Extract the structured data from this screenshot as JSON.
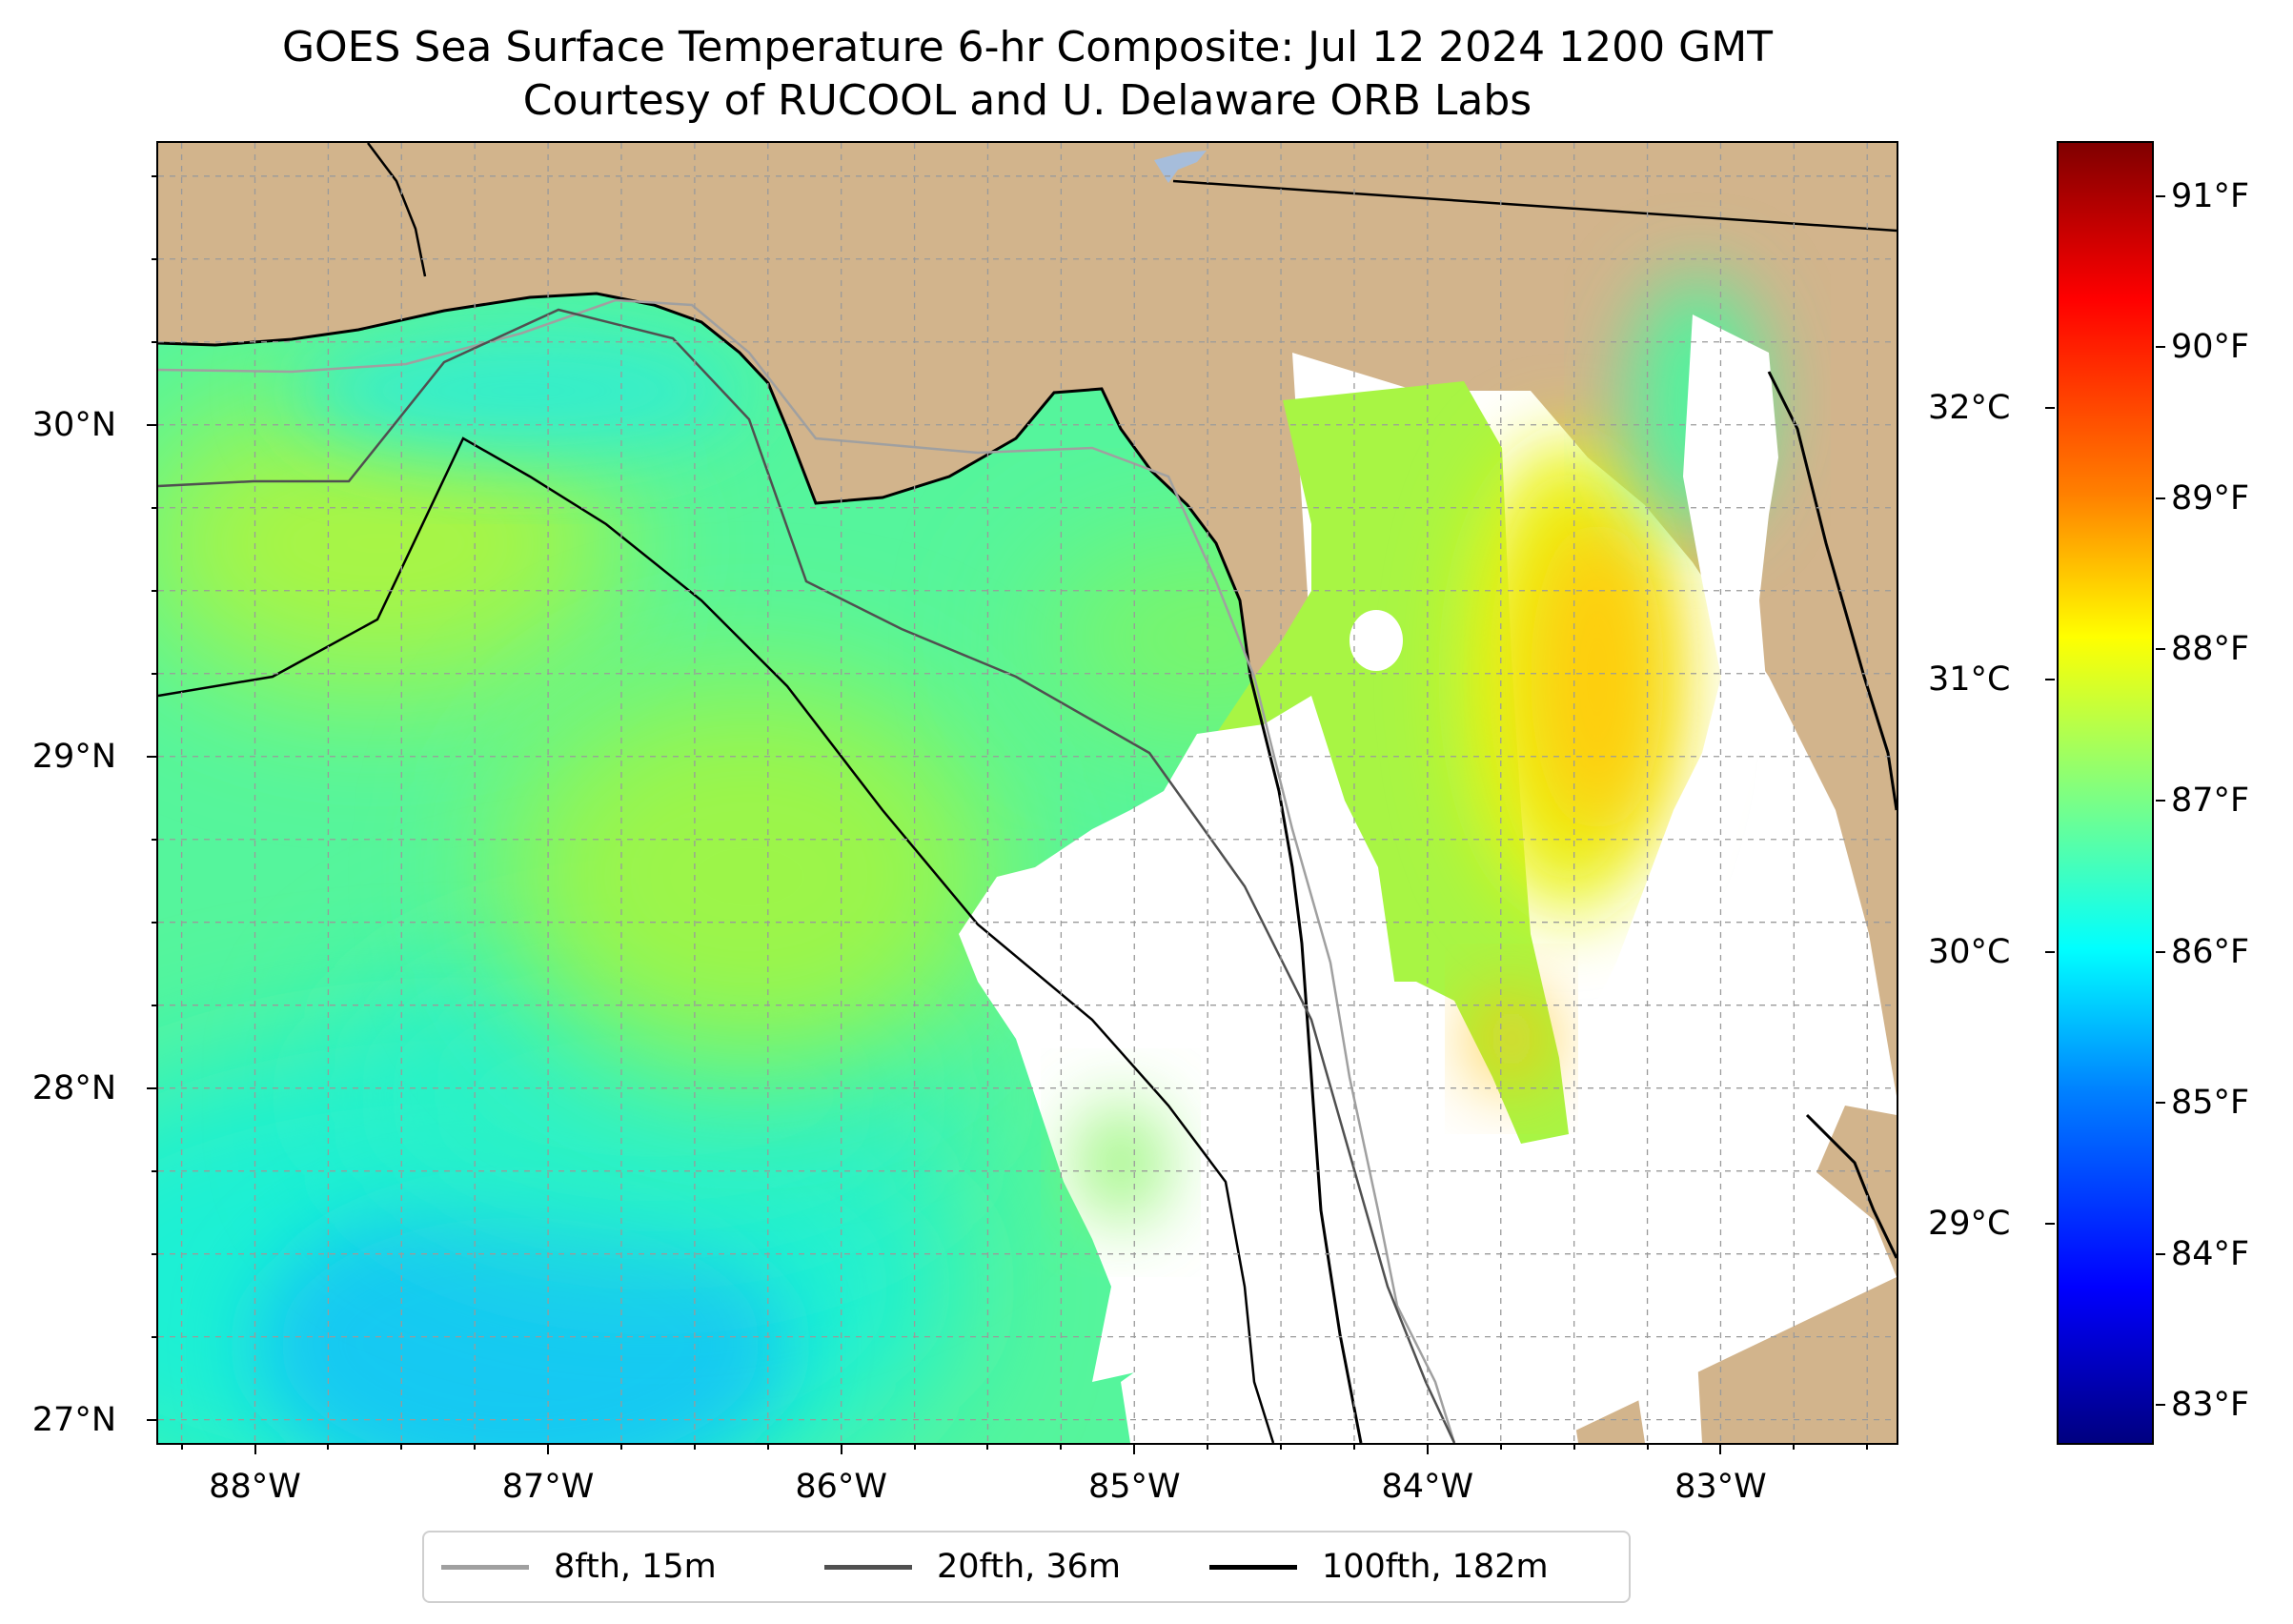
{
  "title": {
    "line1": "GOES Sea Surface Temperature 6-hr Composite: Jul 12 2024 1200 GMT",
    "line2": "Courtesy of RUCOOL and U. Delaware ORB Labs"
  },
  "map": {
    "extent": {
      "lon_min": -88.33,
      "lon_max": -82.4,
      "lat_min": 26.93,
      "lat_max": 30.85
    },
    "latitude_labels": [
      "30°N",
      "29°N",
      "28°N",
      "27°N"
    ],
    "latitude_values": [
      30,
      29,
      28,
      27
    ],
    "longitude_labels": [
      "88°W",
      "87°W",
      "86°W",
      "85°W",
      "84°W",
      "83°W"
    ],
    "longitude_values": [
      -88,
      -87,
      -86,
      -85,
      -84,
      -83
    ],
    "gridlines": "dashed, 0.25° spacing",
    "colors": {
      "land": "#d2b48c",
      "no_data": "#ffffff",
      "coastline": "#000000",
      "lake": "#a6bddb",
      "isobath_8fth": "#a0a0a0",
      "isobath_20fth": "#505050",
      "isobath_100fth": "#000000"
    }
  },
  "colorbar": {
    "colormap": "jet",
    "fahrenheit_labels": [
      "91°F",
      "90°F",
      "89°F",
      "88°F",
      "87°F",
      "86°F",
      "85°F",
      "84°F",
      "83°F"
    ],
    "fahrenheit_values": [
      91,
      90,
      89,
      88,
      87,
      86,
      85,
      84,
      83
    ],
    "celsius_labels": [
      "32°C",
      "31°C",
      "30°C",
      "29°C"
    ],
    "celsius_values": [
      32,
      31,
      30,
      29
    ],
    "range_f": [
      82.75,
      91.35
    ]
  },
  "legend": {
    "placement": "below map",
    "items": [
      {
        "label": "8fth, 15m",
        "color": "#a0a0a0"
      },
      {
        "label": "20fth, 36m",
        "color": "#505050"
      },
      {
        "label": "100fth, 182m",
        "color": "#000000"
      }
    ]
  }
}
